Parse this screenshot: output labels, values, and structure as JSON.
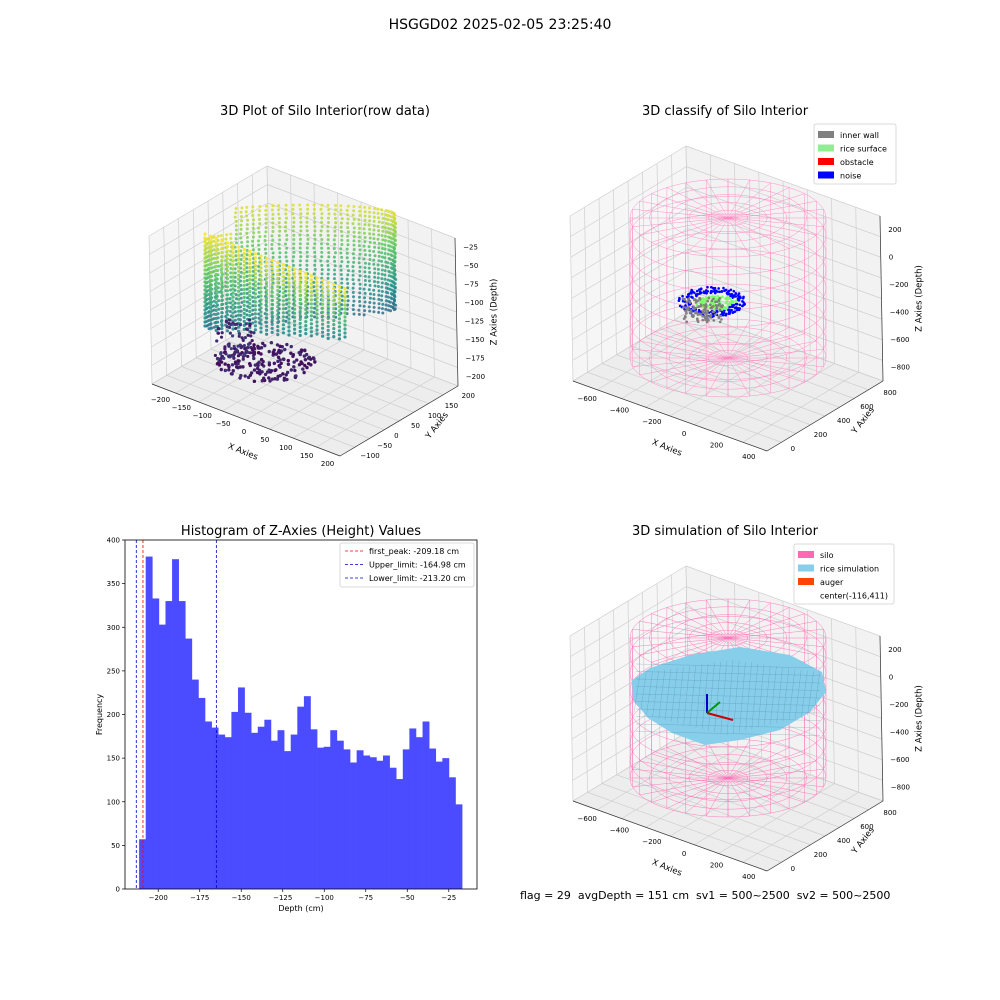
{
  "suptitle": "HSGGD02 2025-02-05 23:25:40",
  "footer": "flag = 29  avgDepth = 151 cm  sv1 = 500~2500  sv2 = 500~2500",
  "chart_data": [
    {
      "type": "scatter3d",
      "title": "3D Plot of Silo Interior(row data)",
      "xlabel": "X Axies",
      "ylabel": "Y Axies",
      "zlabel": "Z Axies (Depth)",
      "x_ticks": [
        "−200",
        "−150",
        "−100",
        "−50",
        "0",
        "50",
        "100",
        "150",
        "200"
      ],
      "y_ticks": [
        "−100",
        "−50",
        "0",
        "50",
        "100",
        "150",
        "200"
      ],
      "z_ticks": [
        "−25",
        "−50",
        "−75",
        "−100",
        "−125",
        "−150",
        "−175",
        "−200"
      ],
      "xlim": [
        -200,
        200
      ],
      "ylim": [
        -100,
        200
      ],
      "zlim": [
        -225,
        -10
      ],
      "colormap": "viridis"
    },
    {
      "type": "scatter3d",
      "title": "3D classify of Silo Interior",
      "xlabel": "X Axies",
      "ylabel": "Y Axies",
      "zlabel": "Z Axies (Depth)",
      "x_ticks": [
        "−600",
        "−400",
        "−200",
        "0",
        "200",
        "400"
      ],
      "y_ticks": [
        "0",
        "200",
        "400",
        "600",
        "800"
      ],
      "z_ticks": [
        "200",
        "0",
        "−200",
        "−400",
        "−600",
        "−800"
      ],
      "legend_position": "top-right",
      "legend": [
        {
          "label": "inner wall",
          "color": "#808080"
        },
        {
          "label": "rice surface",
          "color": "#90ee90"
        },
        {
          "label": "obstacle",
          "color": "#ff0000"
        },
        {
          "label": "noise",
          "color": "#0000ff"
        }
      ]
    },
    {
      "type": "bar",
      "title": "Histogram of Z-Axies (Height) Values",
      "xlabel": "Depth (cm)",
      "ylabel": "Frequency",
      "bar_color": "#4b4bff",
      "xlim": [
        -220,
        -8
      ],
      "ylim": [
        0,
        400
      ],
      "x_ticks": [
        -200,
        -175,
        -150,
        -125,
        -100,
        -75,
        -50,
        -25
      ],
      "x_tick_labels": [
        "−200",
        "−175",
        "−150",
        "−125",
        "−100",
        "−75",
        "−50",
        "−25"
      ],
      "y_ticks": [
        0,
        50,
        100,
        150,
        200,
        250,
        300,
        350,
        400
      ],
      "bin_start": -211.5,
      "bin_width": 3.97,
      "values": [
        57,
        381,
        333,
        303,
        330,
        378,
        330,
        287,
        240,
        219,
        192,
        185,
        177,
        174,
        203,
        231,
        202,
        179,
        186,
        194,
        170,
        182,
        158,
        177,
        209,
        221,
        183,
        162,
        163,
        182,
        170,
        160,
        145,
        159,
        153,
        151,
        147,
        153,
        139,
        126,
        160,
        184,
        174,
        192,
        161,
        146,
        150,
        128,
        97
      ],
      "legend_position": "top-right",
      "lines": [
        {
          "label": "first_peak: -209.18 cm",
          "value": -209.18,
          "color": "#ff0000"
        },
        {
          "label": "Upper_limit: -164.98 cm",
          "value": -164.98,
          "color": "#0000cc"
        },
        {
          "label": "Lower_limit: -213.20 cm",
          "value": -213.2,
          "color": "#0000cc"
        }
      ]
    },
    {
      "type": "surface3d",
      "title": "3D simulation of Silo Interior",
      "xlabel": "X Axies",
      "ylabel": "Y Axies",
      "zlabel": "Z Axies (Depth)",
      "x_ticks": [
        "−600",
        "−400",
        "−200",
        "0",
        "200",
        "400"
      ],
      "y_ticks": [
        "0",
        "200",
        "400",
        "600",
        "800"
      ],
      "z_ticks": [
        "200",
        "0",
        "−200",
        "−400",
        "−600",
        "−800"
      ],
      "legend_position": "top-right",
      "legend": [
        {
          "label": "silo",
          "color": "#ff69b4"
        },
        {
          "label": "rice simulation",
          "color": "#87ceeb"
        },
        {
          "label": "auger",
          "color": "#ff4500"
        },
        {
          "label": "center(-116,411)",
          "color": ""
        }
      ]
    }
  ]
}
